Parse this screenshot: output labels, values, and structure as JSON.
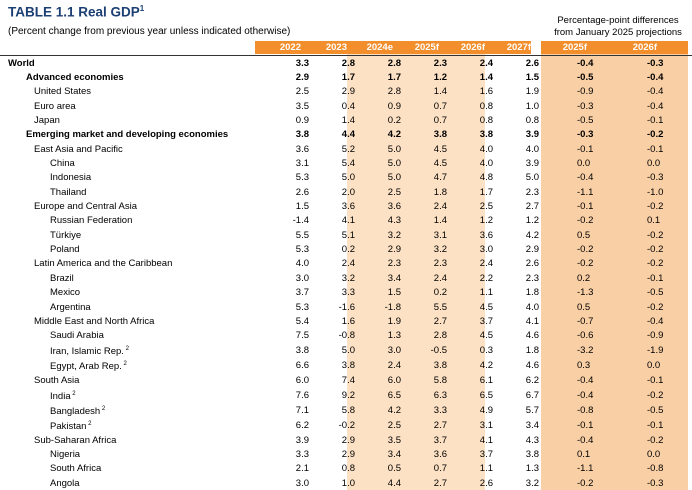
{
  "title": {
    "main": "TABLE 1.1 Real GDP",
    "sup": "1"
  },
  "subtitle": "(Percent change from previous year unless indicated otherwise)",
  "diff_title": "Percentage-point differences from January 2025 projections",
  "columns": [
    "2022",
    "2023",
    "2024e",
    "2025f",
    "2026f",
    "2027f"
  ],
  "diff_columns": [
    "2025f",
    "2026f"
  ],
  "colors": {
    "header": "#f28e2b",
    "forecast_shade": "#fce1c4",
    "diff_shade": "#f9cfa5",
    "title": "#1c3f73"
  },
  "rows": [
    {
      "label": "World",
      "level": 0,
      "bold": true,
      "values": [
        "3.3",
        "2.8",
        "2.8",
        "2.3",
        "2.4",
        "2.6"
      ],
      "diffs": [
        "-0.4",
        "-0.3"
      ]
    },
    {
      "label": "Advanced economies",
      "level": 1,
      "bold": true,
      "values": [
        "2.9",
        "1.7",
        "1.7",
        "1.2",
        "1.4",
        "1.5"
      ],
      "diffs": [
        "-0.5",
        "-0.4"
      ]
    },
    {
      "label": "United States",
      "level": 2,
      "bold": false,
      "values": [
        "2.5",
        "2.9",
        "2.8",
        "1.4",
        "1.6",
        "1.9"
      ],
      "diffs": [
        "-0.9",
        "-0.4"
      ]
    },
    {
      "label": "Euro area",
      "level": 2,
      "bold": false,
      "values": [
        "3.5",
        "0.4",
        "0.9",
        "0.7",
        "0.8",
        "1.0"
      ],
      "diffs": [
        "-0.3",
        "-0.4"
      ]
    },
    {
      "label": "Japan",
      "level": 2,
      "bold": false,
      "values": [
        "0.9",
        "1.4",
        "0.2",
        "0.7",
        "0.8",
        "0.8"
      ],
      "diffs": [
        "-0.5",
        "-0.1"
      ]
    },
    {
      "label": "Emerging market and developing economies",
      "level": 1,
      "bold": true,
      "values": [
        "3.8",
        "4.4",
        "4.2",
        "3.8",
        "3.8",
        "3.9"
      ],
      "diffs": [
        "-0.3",
        "-0.2"
      ]
    },
    {
      "label": "East Asia and Pacific",
      "level": 2,
      "bold": false,
      "values": [
        "3.6",
        "5.2",
        "5.0",
        "4.5",
        "4.0",
        "4.0"
      ],
      "diffs": [
        "-0.1",
        "-0.1"
      ]
    },
    {
      "label": "China",
      "level": 3,
      "bold": false,
      "values": [
        "3.1",
        "5.4",
        "5.0",
        "4.5",
        "4.0",
        "3.9"
      ],
      "diffs": [
        "0.0",
        "0.0"
      ]
    },
    {
      "label": "Indonesia",
      "level": 3,
      "bold": false,
      "values": [
        "5.3",
        "5.0",
        "5.0",
        "4.7",
        "4.8",
        "5.0"
      ],
      "diffs": [
        "-0.4",
        "-0.3"
      ]
    },
    {
      "label": "Thailand",
      "level": 3,
      "bold": false,
      "values": [
        "2.6",
        "2.0",
        "2.5",
        "1.8",
        "1.7",
        "2.3"
      ],
      "diffs": [
        "-1.1",
        "-1.0"
      ]
    },
    {
      "label": "Europe and Central Asia",
      "level": 2,
      "bold": false,
      "values": [
        "1.5",
        "3.6",
        "3.6",
        "2.4",
        "2.5",
        "2.7"
      ],
      "diffs": [
        "-0.1",
        "-0.2"
      ]
    },
    {
      "label": "Russian Federation",
      "level": 3,
      "bold": false,
      "values": [
        "-1.4",
        "4.1",
        "4.3",
        "1.4",
        "1.2",
        "1.2"
      ],
      "diffs": [
        "-0.2",
        "0.1"
      ]
    },
    {
      "label": "Türkiye",
      "level": 3,
      "bold": false,
      "values": [
        "5.5",
        "5.1",
        "3.2",
        "3.1",
        "3.6",
        "4.2"
      ],
      "diffs": [
        "0.5",
        "-0.2"
      ]
    },
    {
      "label": "Poland",
      "level": 3,
      "bold": false,
      "values": [
        "5.3",
        "0.2",
        "2.9",
        "3.2",
        "3.0",
        "2.9"
      ],
      "diffs": [
        "-0.2",
        "-0.2"
      ]
    },
    {
      "label": "Latin America and the Caribbean",
      "level": 2,
      "bold": false,
      "values": [
        "4.0",
        "2.4",
        "2.3",
        "2.3",
        "2.4",
        "2.6"
      ],
      "diffs": [
        "-0.2",
        "-0.2"
      ]
    },
    {
      "label": "Brazil",
      "level": 3,
      "bold": false,
      "values": [
        "3.0",
        "3.2",
        "3.4",
        "2.4",
        "2.2",
        "2.3"
      ],
      "diffs": [
        "0.2",
        "-0.1"
      ]
    },
    {
      "label": "Mexico",
      "level": 3,
      "bold": false,
      "values": [
        "3.7",
        "3.3",
        "1.5",
        "0.2",
        "1.1",
        "1.8"
      ],
      "diffs": [
        "-1.3",
        "-0.5"
      ]
    },
    {
      "label": "Argentina",
      "level": 3,
      "bold": false,
      "values": [
        "5.3",
        "-1.6",
        "-1.8",
        "5.5",
        "4.5",
        "4.0"
      ],
      "diffs": [
        "0.5",
        "-0.2"
      ]
    },
    {
      "label": "Middle East and North Africa",
      "level": 2,
      "bold": false,
      "values": [
        "5.4",
        "1.6",
        "1.9",
        "2.7",
        "3.7",
        "4.1"
      ],
      "diffs": [
        "-0.7",
        "-0.4"
      ]
    },
    {
      "label": "Saudi Arabia",
      "level": 3,
      "bold": false,
      "values": [
        "7.5",
        "-0.8",
        "1.3",
        "2.8",
        "4.5",
        "4.6"
      ],
      "diffs": [
        "-0.6",
        "-0.9"
      ]
    },
    {
      "label": "Iran, Islamic Rep.",
      "sup": "2",
      "level": 3,
      "bold": false,
      "values": [
        "3.8",
        "5.0",
        "3.0",
        "-0.5",
        "0.3",
        "1.8"
      ],
      "diffs": [
        "-3.2",
        "-1.9"
      ]
    },
    {
      "label": "Egypt, Arab Rep.",
      "sup": "2",
      "level": 3,
      "bold": false,
      "values": [
        "6.6",
        "3.8",
        "2.4",
        "3.8",
        "4.2",
        "4.6"
      ],
      "diffs": [
        "0.3",
        "0.0"
      ]
    },
    {
      "label": "South Asia",
      "level": 2,
      "bold": false,
      "values": [
        "6.0",
        "7.4",
        "6.0",
        "5.8",
        "6.1",
        "6.2"
      ],
      "diffs": [
        "-0.4",
        "-0.1"
      ]
    },
    {
      "label": "India",
      "sup": "2",
      "level": 3,
      "bold": false,
      "values": [
        "7.6",
        "9.2",
        "6.5",
        "6.3",
        "6.5",
        "6.7"
      ],
      "diffs": [
        "-0.4",
        "-0.2"
      ]
    },
    {
      "label": "Bangladesh",
      "sup": "2",
      "level": 3,
      "bold": false,
      "values": [
        "7.1",
        "5.8",
        "4.2",
        "3.3",
        "4.9",
        "5.7"
      ],
      "diffs": [
        "-0.8",
        "-0.5"
      ]
    },
    {
      "label": "Pakistan",
      "sup": "2",
      "level": 3,
      "bold": false,
      "values": [
        "6.2",
        "-0.2",
        "2.5",
        "2.7",
        "3.1",
        "3.4"
      ],
      "diffs": [
        "-0.1",
        "-0.1"
      ]
    },
    {
      "label": "Sub-Saharan Africa",
      "level": 2,
      "bold": false,
      "values": [
        "3.9",
        "2.9",
        "3.5",
        "3.7",
        "4.1",
        "4.3"
      ],
      "diffs": [
        "-0.4",
        "-0.2"
      ]
    },
    {
      "label": "Nigeria",
      "level": 3,
      "bold": false,
      "values": [
        "3.3",
        "2.9",
        "3.4",
        "3.6",
        "3.7",
        "3.8"
      ],
      "diffs": [
        "0.1",
        "0.0"
      ]
    },
    {
      "label": "South Africa",
      "level": 3,
      "bold": false,
      "values": [
        "2.1",
        "0.8",
        "0.5",
        "0.7",
        "1.1",
        "1.3"
      ],
      "diffs": [
        "-1.1",
        "-0.8"
      ]
    },
    {
      "label": "Angola",
      "level": 3,
      "bold": false,
      "values": [
        "3.0",
        "1.0",
        "4.4",
        "2.7",
        "2.6",
        "3.2"
      ],
      "diffs": [
        "-0.2",
        "-0.3"
      ]
    }
  ]
}
